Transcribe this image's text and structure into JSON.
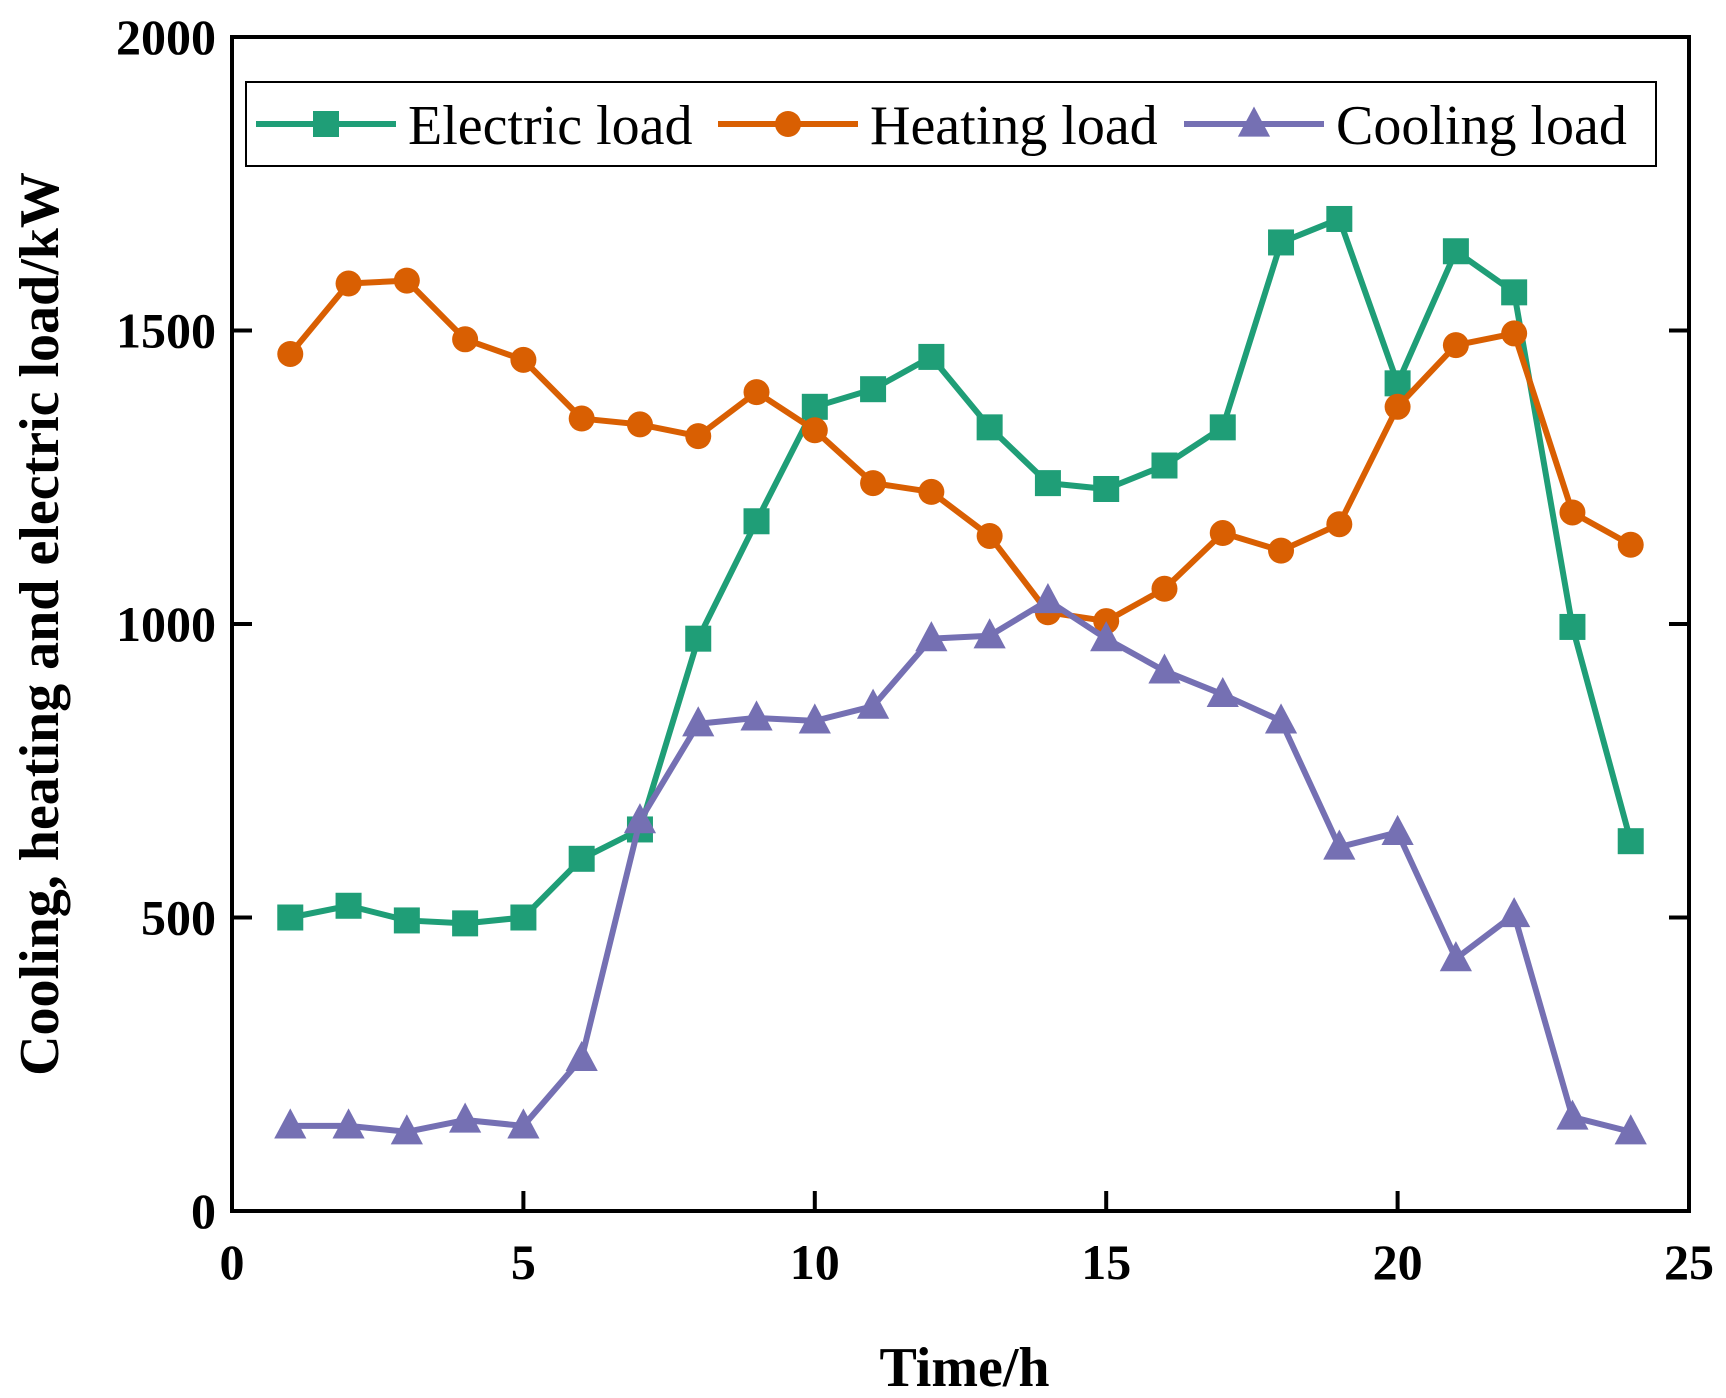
{
  "chart_data": {
    "type": "line",
    "title": "",
    "xlabel": "Time/h",
    "ylabel": "Cooling, heating and electric load/kW",
    "xlim": [
      0,
      25
    ],
    "ylim": [
      0,
      2000
    ],
    "xticks": [
      "0",
      "5",
      "10",
      "15",
      "20",
      "25"
    ],
    "yticks": [
      "0",
      "500",
      "1000",
      "1500",
      "2000"
    ],
    "grid": false,
    "legend_position": "top",
    "x": [
      1,
      2,
      3,
      4,
      5,
      6,
      7,
      8,
      9,
      10,
      11,
      12,
      13,
      14,
      15,
      16,
      17,
      18,
      19,
      20,
      21,
      22,
      23,
      24
    ],
    "series": [
      {
        "name": "Electric load",
        "color": "#1f9e77",
        "marker": "square",
        "values": [
          500,
          520,
          495,
          490,
          500,
          600,
          650,
          975,
          1175,
          1370,
          1400,
          1455,
          1335,
          1240,
          1230,
          1270,
          1335,
          1650,
          1690,
          1410,
          1635,
          1565,
          995,
          630
        ]
      },
      {
        "name": "Heating load",
        "color": "#d95f02",
        "marker": "circle",
        "values": [
          1460,
          1580,
          1585,
          1485,
          1450,
          1350,
          1340,
          1320,
          1395,
          1330,
          1240,
          1225,
          1150,
          1020,
          1005,
          1060,
          1155,
          1125,
          1170,
          1370,
          1475,
          1495,
          1190,
          1135
        ]
      },
      {
        "name": "Cooling load",
        "color": "#7570b3",
        "marker": "triangle",
        "values": [
          145,
          145,
          135,
          155,
          145,
          260,
          665,
          830,
          840,
          835,
          860,
          975,
          980,
          1040,
          975,
          920,
          880,
          835,
          620,
          645,
          430,
          505,
          160,
          135
        ]
      }
    ]
  }
}
